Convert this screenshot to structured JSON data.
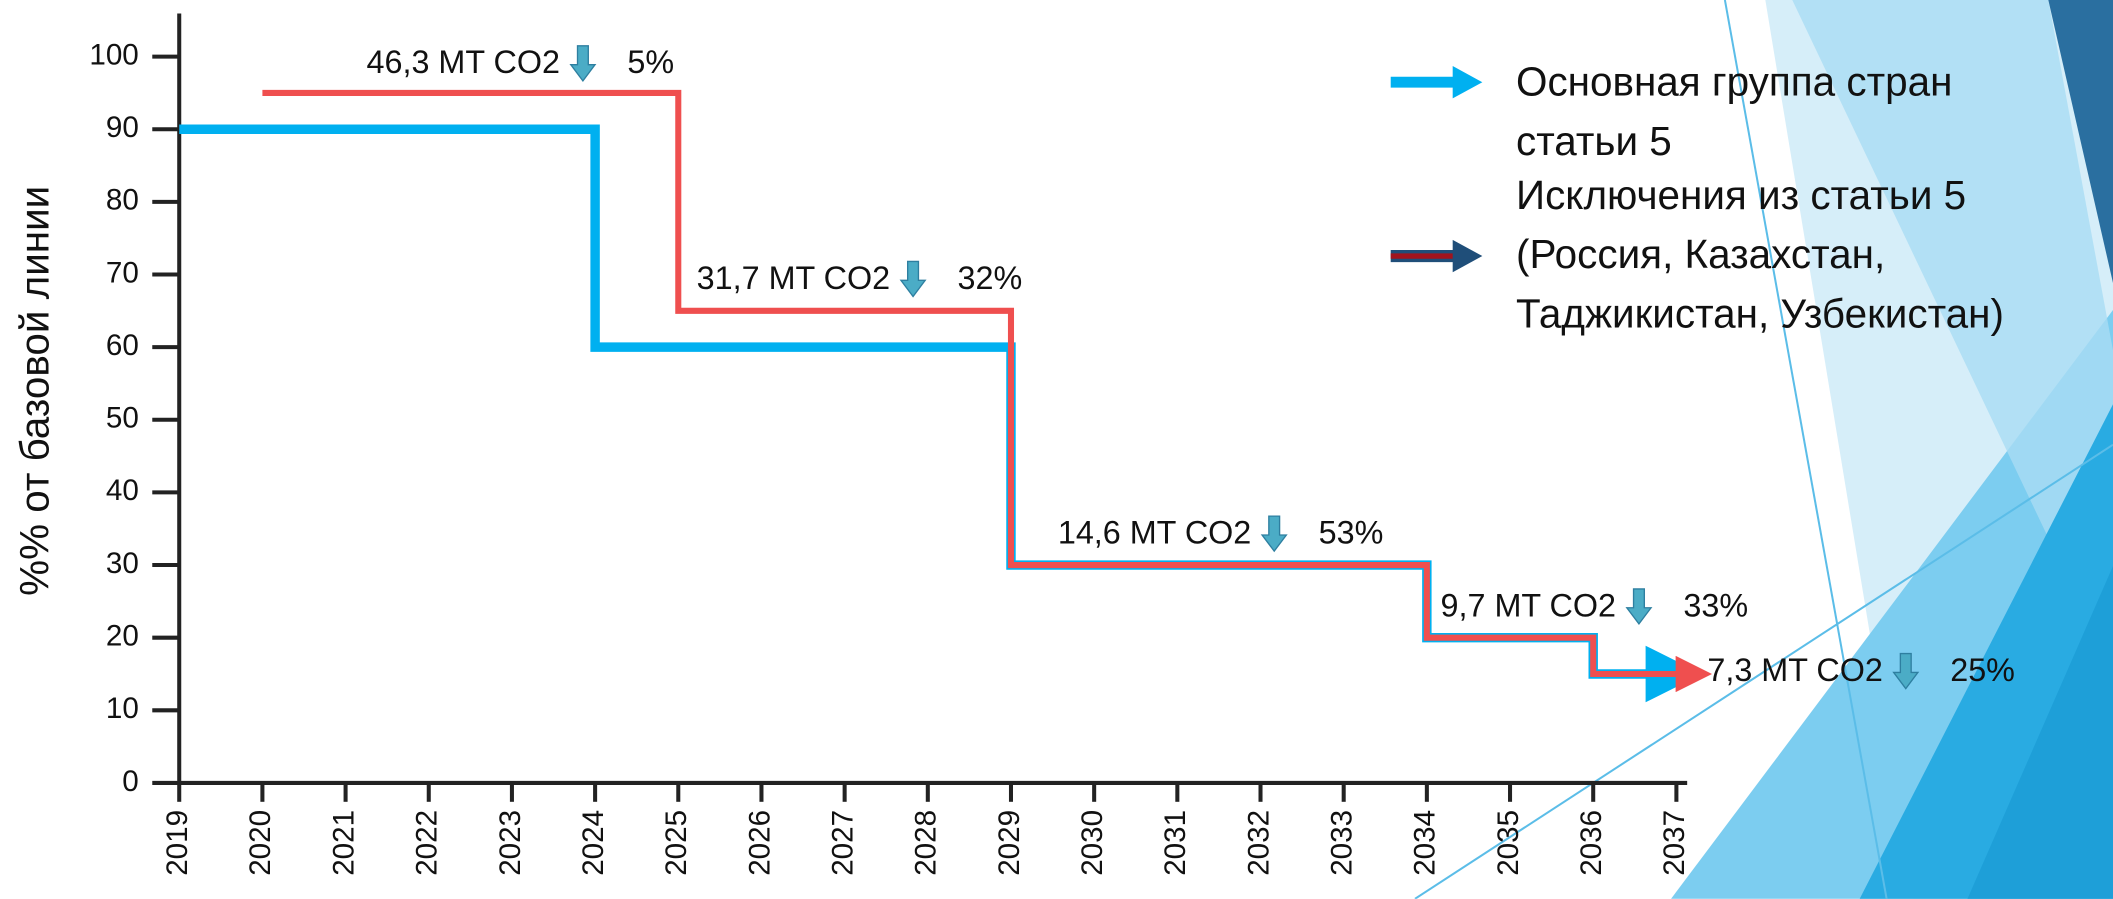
{
  "chart_data": {
    "type": "step",
    "ylabel": "%% от базовой линии",
    "xlim": [
      2019,
      2037
    ],
    "ylim": [
      0,
      100
    ],
    "xticks": [
      2019,
      2020,
      2021,
      2022,
      2023,
      2024,
      2025,
      2026,
      2027,
      2028,
      2029,
      2030,
      2031,
      2032,
      2033,
      2034,
      2035,
      2036,
      2037
    ],
    "yticks": [
      0,
      10,
      20,
      30,
      40,
      50,
      60,
      70,
      80,
      90,
      100
    ],
    "series": [
      {
        "name": "Основная группа стран статьи 5",
        "color": "#00b0f0",
        "x": [
          2019,
          2024,
          2029,
          2034,
          2036,
          2036.8
        ],
        "values": [
          90,
          60,
          30,
          20,
          15,
          15
        ]
      },
      {
        "name": "Исключения из статьи 5 (Россия, Казахстан, Таджикистан, Узбекистан)",
        "color": "#ef4f4f",
        "x": [
          2020,
          2025,
          2029,
          2034,
          2036,
          2037.1
        ],
        "values": [
          95,
          65,
          30,
          20,
          15,
          15
        ]
      }
    ],
    "annotations": [
      {
        "text": "46,3 MT CO2",
        "change": "5%"
      },
      {
        "text": "31,7 MT CO2",
        "change": "32%"
      },
      {
        "text": "14,6 MT CO2",
        "change": "53%"
      },
      {
        "text": "9,7 MT CO2",
        "change": "33%"
      },
      {
        "text": "7,3 MT CO2",
        "change": "25%"
      }
    ]
  }
}
